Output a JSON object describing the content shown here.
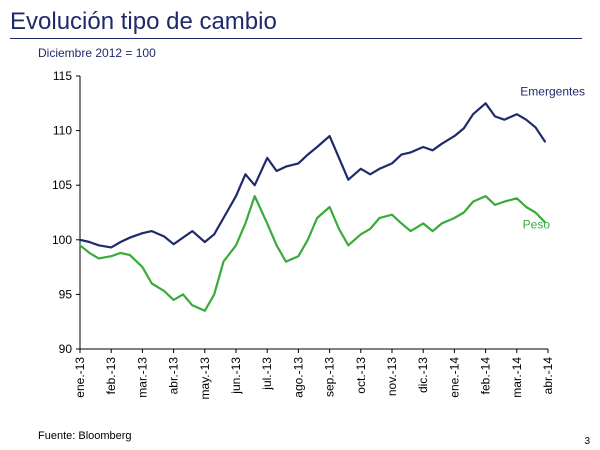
{
  "slide": {
    "title": "Evolución tipo de cambio",
    "subtitle": "Diciembre 2012 = 100",
    "source": "Fuente: Bloomberg",
    "page_number": "3"
  },
  "chart_data": {
    "type": "line",
    "title": "Evolución tipo de cambio",
    "subtitle": "Diciembre 2012 = 100",
    "xlabel": "",
    "ylabel": "",
    "ylim": [
      90,
      115
    ],
    "yticks": [
      90,
      95,
      100,
      105,
      110,
      115
    ],
    "x_ticks": [
      "ene.-13",
      "feb.-13",
      "mar.-13",
      "abr.-13",
      "may.-13",
      "jun.-13",
      "jul.-13",
      "ago.-13",
      "sep.-13",
      "oct.-13",
      "nov.-13",
      "dic.-13",
      "ene.-14",
      "feb.-14",
      "mar.-14",
      "abr.-14"
    ],
    "grid": false,
    "legend": "inline labels",
    "x_unit": "months since ene.-13",
    "series": [
      {
        "name": "Emergentes",
        "color": "#1f2a6b",
        "x": [
          0,
          0.3,
          0.6,
          1,
          1.3,
          1.6,
          2,
          2.3,
          2.7,
          3,
          3.3,
          3.6,
          4,
          4.3,
          4.6,
          5,
          5.3,
          5.6,
          6,
          6.3,
          6.6,
          7,
          7.3,
          7.6,
          8,
          8.3,
          8.6,
          9,
          9.3,
          9.6,
          10,
          10.3,
          10.6,
          11,
          11.3,
          11.6,
          12,
          12.3,
          12.6,
          13,
          13.3,
          13.6,
          14,
          14.3,
          14.6,
          14.9
        ],
        "values": [
          100.0,
          99.8,
          99.5,
          99.3,
          99.8,
          100.2,
          100.6,
          100.8,
          100.3,
          99.6,
          100.2,
          100.8,
          99.8,
          100.5,
          102.0,
          104.0,
          106.0,
          105.0,
          107.5,
          106.3,
          106.7,
          107.0,
          107.8,
          108.5,
          109.5,
          107.5,
          105.5,
          106.5,
          106.0,
          106.5,
          107.0,
          107.8,
          108.0,
          108.5,
          108.2,
          108.8,
          109.5,
          110.2,
          111.5,
          112.5,
          111.3,
          111.0,
          111.5,
          111.0,
          110.3,
          109.0
        ]
      },
      {
        "name": "Peso",
        "color": "#3aab3a",
        "x": [
          0,
          0.3,
          0.6,
          1,
          1.3,
          1.6,
          2,
          2.3,
          2.7,
          3,
          3.3,
          3.6,
          4,
          4.3,
          4.6,
          5,
          5.3,
          5.6,
          6,
          6.3,
          6.6,
          7,
          7.3,
          7.6,
          8,
          8.3,
          8.6,
          9,
          9.3,
          9.6,
          10,
          10.3,
          10.6,
          11,
          11.3,
          11.6,
          12,
          12.3,
          12.6,
          13,
          13.3,
          13.6,
          14,
          14.3,
          14.6,
          14.9
        ],
        "values": [
          99.5,
          98.8,
          98.3,
          98.5,
          98.8,
          98.6,
          97.5,
          96.0,
          95.3,
          94.5,
          95.0,
          94.0,
          93.5,
          95.0,
          98.0,
          99.5,
          101.5,
          104.0,
          101.5,
          99.5,
          98.0,
          98.5,
          100.0,
          102.0,
          103.0,
          101.0,
          99.5,
          100.5,
          101.0,
          102.0,
          102.3,
          101.5,
          100.8,
          101.5,
          100.8,
          101.5,
          102.0,
          102.5,
          103.5,
          104.0,
          103.2,
          103.5,
          103.8,
          103.0,
          102.5,
          101.6
        ]
      }
    ]
  }
}
